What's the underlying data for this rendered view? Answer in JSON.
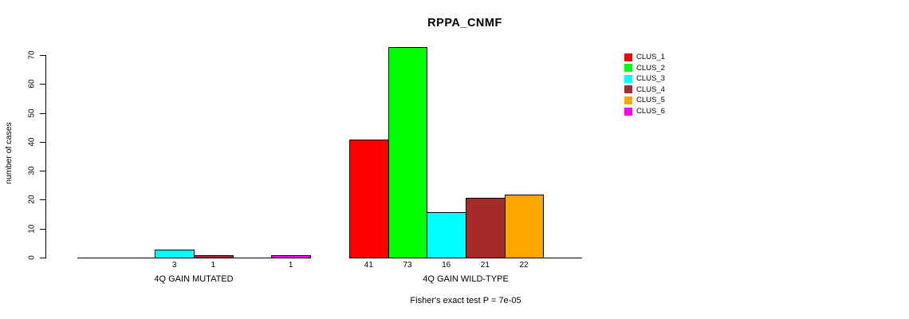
{
  "figure": {
    "title": "RPPA_CNMF",
    "footnote": "Fisher's exact test P = 7e-05",
    "background_color": "#FFFFFF"
  },
  "chart_data": {
    "type": "bar",
    "title": "RPPA_CNMF",
    "xlabel": "",
    "ylabel": "number of cases",
    "annotation": "Fisher's exact test P = 7e-05",
    "ylim": [
      0,
      73
    ],
    "yticks": [
      0,
      10,
      20,
      30,
      40,
      50,
      60,
      70
    ],
    "grid": "off",
    "legend_position": "top-right",
    "series": [
      {
        "name": "CLUS_1",
        "color": "#FF0000",
        "values": [
          0,
          41
        ]
      },
      {
        "name": "CLUS_2",
        "color": "#00FF00",
        "values": [
          0,
          73
        ]
      },
      {
        "name": "CLUS_3",
        "color": "#00FFFF",
        "values": [
          3,
          16
        ]
      },
      {
        "name": "CLUS_4",
        "color": "#A52A2A",
        "values": [
          1,
          21
        ]
      },
      {
        "name": "CLUS_5",
        "color": "#FFA500",
        "values": [
          0,
          22
        ]
      },
      {
        "name": "CLUS_6",
        "color": "#FF00FF",
        "values": [
          1,
          0
        ]
      }
    ],
    "categories": [
      "4Q GAIN MUTATED",
      "4Q GAIN WILD-TYPE"
    ],
    "bar_value_labels_shown_only_if_nonzero": true,
    "axis_color": "#000000"
  }
}
